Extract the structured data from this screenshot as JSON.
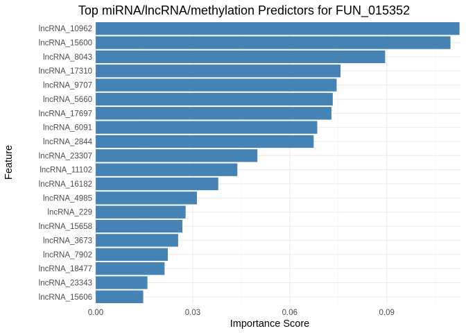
{
  "chart_data": {
    "type": "bar",
    "orientation": "horizontal",
    "title": "Top miRNA/lncRNA/methylation Predictors for FUN_015352",
    "xlabel": "Importance Score",
    "ylabel": "Feature",
    "xlim": [
      0,
      0.113
    ],
    "x_ticks": [
      0.0,
      0.03,
      0.06,
      0.09
    ],
    "x_tick_labels": [
      "0.00",
      "0.03",
      "0.06",
      "0.09"
    ],
    "grid": true,
    "bar_color": "#4682b4",
    "categories": [
      "lncRNA_10962",
      "lncRNA_15600",
      "lncRNA_8043",
      "lncRNA_17310",
      "lncRNA_9707",
      "lncRNA_5660",
      "lncRNA_17697",
      "lncRNA_6091",
      "lncRNA_2844",
      "lncRNA_23307",
      "lncRNA_11102",
      "lncRNA_16182",
      "lncRNA_4985",
      "lncRNA_229",
      "lncRNA_15658",
      "lncRNA_3673",
      "lncRNA_7902",
      "lncRNA_18477",
      "lncRNA_23343",
      "lncRNA_15606"
    ],
    "values": [
      0.1125,
      0.1097,
      0.0895,
      0.0757,
      0.0745,
      0.0733,
      0.0729,
      0.0685,
      0.0674,
      0.05,
      0.0438,
      0.0379,
      0.0313,
      0.0278,
      0.0268,
      0.0255,
      0.0223,
      0.0213,
      0.016,
      0.0147
    ]
  }
}
